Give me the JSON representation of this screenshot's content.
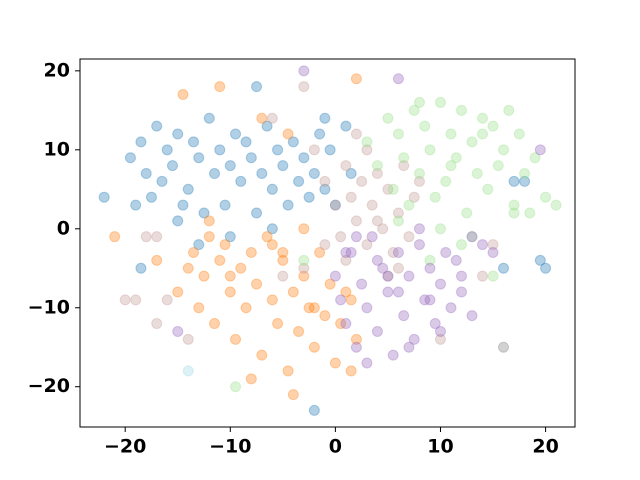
{
  "chart_data": {
    "type": "scatter",
    "xlim": [
      -24.3,
      22.8
    ],
    "ylim": [
      -25.1,
      21.5
    ],
    "xticks": [
      {
        "value": -20,
        "label": "−20"
      },
      {
        "value": -10,
        "label": "−10"
      },
      0,
      10,
      20
    ],
    "yticks": [
      {
        "value": -20,
        "label": "−20"
      },
      {
        "value": -10,
        "label": "−10"
      },
      0,
      10,
      20
    ],
    "alpha": 0.35,
    "series": [
      {
        "color": "#1f77b4",
        "x": [
          -22,
          -19.5,
          -19,
          -18.5,
          -18,
          -17.5,
          -17,
          -16.5,
          -16,
          -15.5,
          -15,
          -14.5,
          -14,
          -13.5,
          -13,
          -12.5,
          -12,
          -11.5,
          -11,
          -10.5,
          -10,
          -9.5,
          -9,
          -8.5,
          -8,
          -7.5,
          -7,
          -6.5,
          -6,
          -5.5,
          -5,
          -4.5,
          -4,
          -3.5,
          -3,
          -2.5,
          -2,
          -1.5,
          -1,
          -0.5,
          0,
          1,
          1.5,
          -7.5,
          -2,
          -18.5,
          -13,
          -6,
          -10,
          -15,
          18,
          16,
          17,
          19.5,
          20,
          -1
        ],
        "values": [
          4,
          9,
          3,
          11,
          7,
          4,
          13,
          6,
          10,
          8,
          12,
          3,
          5,
          11,
          9,
          2,
          14,
          7,
          10,
          3,
          8,
          12,
          6,
          11,
          9,
          2,
          7,
          13,
          5,
          10,
          8,
          3,
          11,
          6,
          9,
          4,
          7,
          12,
          5,
          10,
          3,
          13,
          7,
          18,
          -23,
          -5,
          -2,
          0,
          -1,
          1,
          6,
          -5,
          6,
          -4,
          -5,
          14
        ]
      },
      {
        "color": "#ff7f0e",
        "x": [
          -21,
          -17,
          -15,
          -14,
          -13.5,
          -13,
          -12.5,
          -12,
          -11.5,
          -11,
          -10.5,
          -10,
          -9.5,
          -9,
          -8.5,
          -8,
          -7.5,
          -7,
          -6.5,
          -6,
          -5.5,
          -5,
          -4.5,
          -4,
          -3.5,
          -3,
          -2.5,
          -2,
          -1.5,
          -1,
          -0.5,
          0,
          0.5,
          1,
          1.5,
          2,
          -4,
          -8,
          -6,
          -10,
          -3,
          -14.5,
          -11,
          2,
          -4.5,
          -7,
          -2,
          1.5,
          -12,
          -5
        ],
        "values": [
          -1,
          -4,
          -8,
          -5,
          -3,
          -10,
          -6,
          1,
          -12,
          -4,
          -2,
          -8,
          -14,
          -5,
          -10,
          -3,
          -7,
          -16,
          -1,
          -9,
          -12,
          -4,
          -18,
          -8,
          -13,
          -6,
          -10,
          -15,
          -3,
          -11,
          -7,
          -17,
          -12,
          -8,
          -18,
          -14,
          -21,
          -19,
          -2,
          -6,
          0,
          17,
          18,
          19,
          12,
          14,
          -10,
          -9,
          -1,
          -3
        ]
      },
      {
        "color": "#c49c94",
        "x": [
          -19,
          -18,
          -17,
          -16,
          -5,
          -3,
          -2,
          -1,
          0,
          0.5,
          1,
          1.5,
          2,
          2.5,
          3,
          3.5,
          4,
          4.5,
          5,
          5.5,
          6,
          6.5,
          7,
          7.5,
          8,
          1,
          3,
          5,
          -1,
          2,
          4,
          6,
          -20,
          -17,
          10,
          14,
          15,
          -3,
          -6,
          -14
        ],
        "values": [
          -9,
          -1,
          -12,
          -9,
          -6,
          18,
          10,
          6,
          3,
          -1,
          8,
          4,
          1,
          6,
          -2,
          3,
          7,
          0,
          5,
          -3,
          2,
          8,
          -1,
          4,
          6,
          -4,
          10,
          -6,
          -2,
          12,
          1,
          -5,
          -9,
          -1,
          -14,
          -6,
          -2,
          -5,
          14,
          -14
        ]
      },
      {
        "color": "#98df8a",
        "x": [
          3,
          4,
          5,
          5.5,
          6,
          6.5,
          7,
          7.5,
          8,
          8.5,
          9,
          9.5,
          10,
          10.5,
          11,
          11.5,
          12,
          12.5,
          13,
          13.5,
          14,
          14.5,
          15,
          15.5,
          16,
          16.5,
          17,
          17.5,
          18,
          18.5,
          19,
          20,
          21,
          9,
          12,
          15,
          6,
          10,
          13,
          17,
          -9.5,
          -3,
          8,
          11,
          14
        ],
        "values": [
          11,
          8,
          14,
          5,
          12,
          9,
          3,
          15,
          7,
          13,
          10,
          4,
          16,
          6,
          12,
          9,
          15,
          2,
          11,
          7,
          14,
          5,
          13,
          8,
          10,
          15,
          3,
          12,
          7,
          2,
          9,
          4,
          3,
          -4,
          -2,
          -6,
          1,
          0,
          -1,
          2,
          -20,
          -4,
          16,
          8,
          12
        ]
      },
      {
        "color": "#9467bd",
        "x": [
          0,
          0.5,
          1,
          1.5,
          2,
          2.5,
          3,
          3.5,
          4,
          4.5,
          5,
          5.5,
          6,
          6.5,
          7,
          7.5,
          8,
          8.5,
          9,
          9.5,
          10,
          10.5,
          11,
          11.5,
          12,
          13,
          14,
          15,
          2,
          4,
          6,
          8,
          10,
          3,
          5,
          7,
          -3,
          6,
          19.5,
          -15,
          1,
          9,
          12,
          13
        ],
        "values": [
          -6,
          -9,
          -12,
          -3,
          -15,
          -7,
          -10,
          -1,
          -13,
          -5,
          -8,
          -16,
          -3,
          -11,
          -6,
          -14,
          -2,
          -9,
          -5,
          -12,
          -7,
          -3,
          -10,
          -4,
          -8,
          -11,
          -2,
          -3,
          -1,
          -4,
          -8,
          0,
          -13,
          -17,
          -6,
          -15,
          20,
          19,
          10,
          -13,
          -3,
          -9,
          -6,
          -1
        ]
      },
      {
        "color": "#7f7f7f",
        "x": [
          16
        ],
        "values": [
          -15
        ]
      },
      {
        "color": "#9edae5",
        "x": [
          -14
        ],
        "values": [
          -18
        ]
      }
    ]
  }
}
